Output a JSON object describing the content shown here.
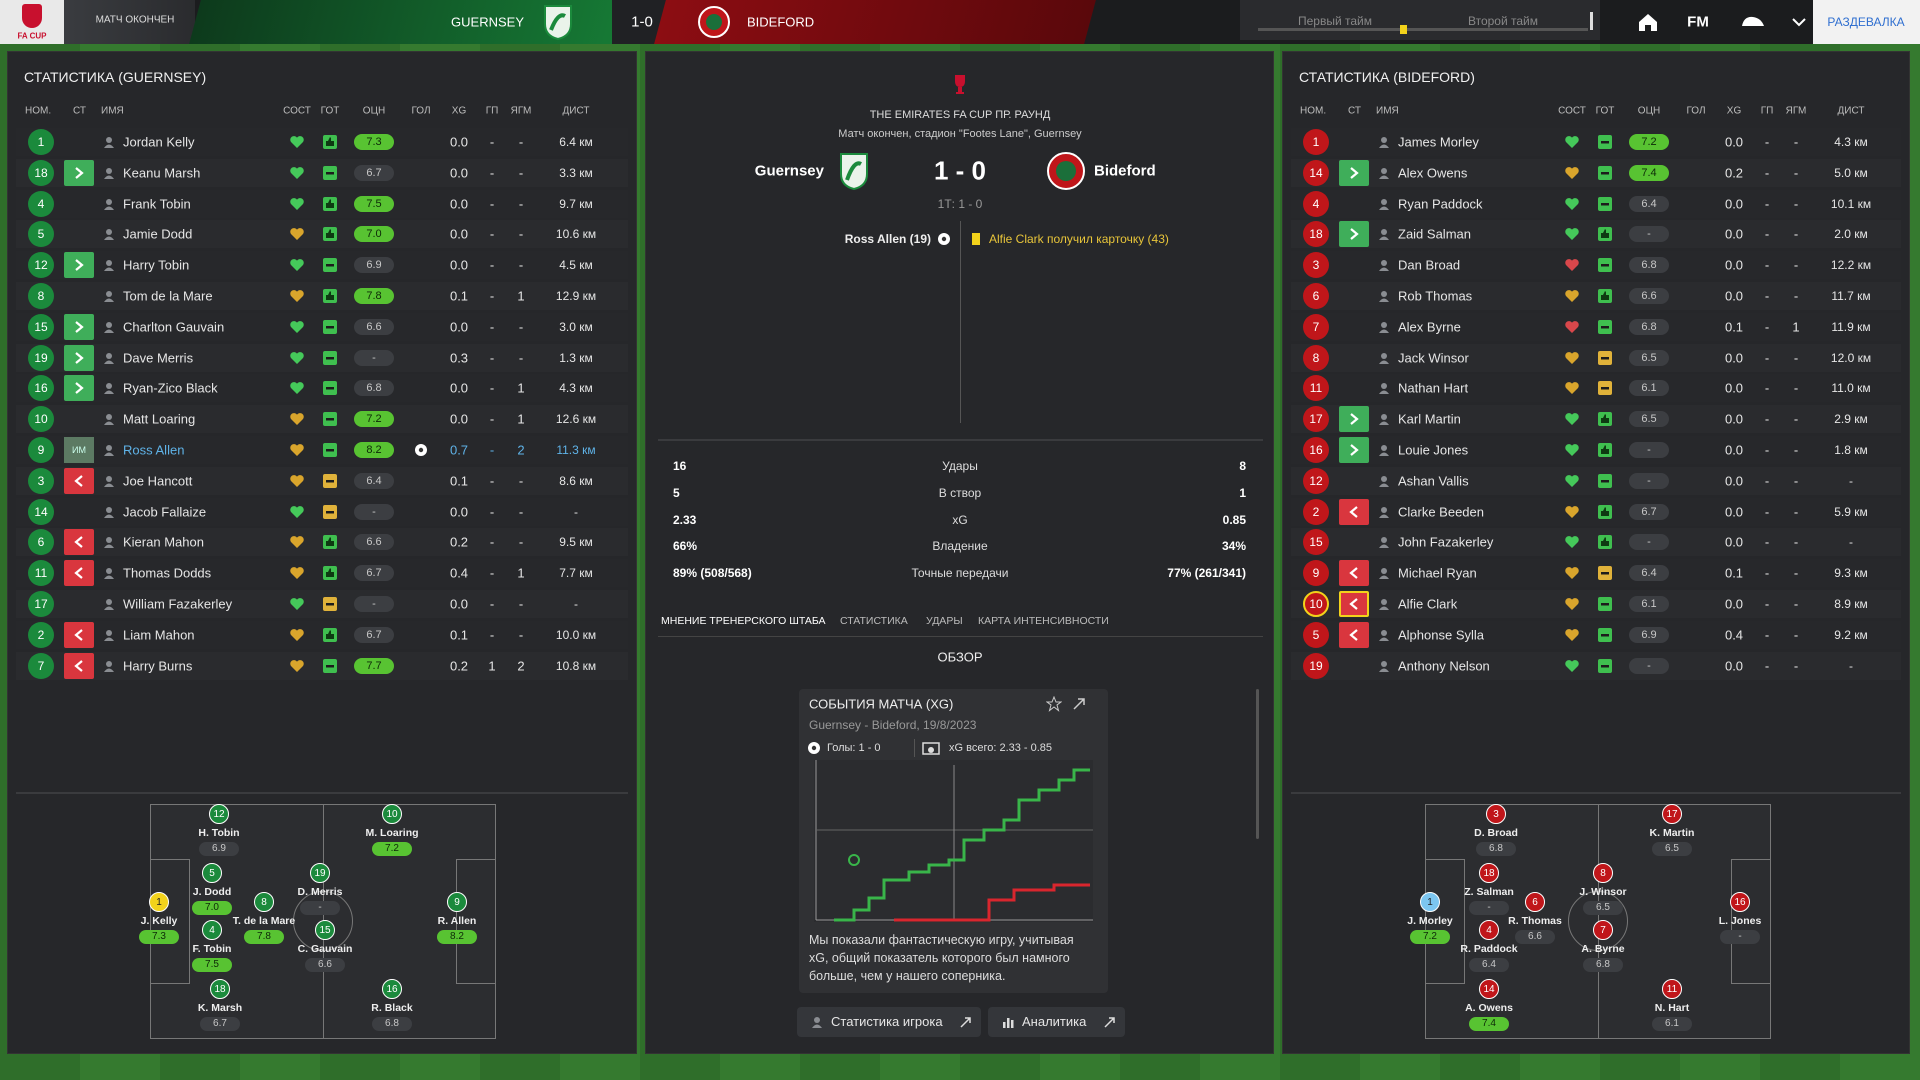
{
  "topbar": {
    "logo": "FA CUP",
    "status": "МАТЧ ОКОНЧЕН",
    "home": "GUERNSEY",
    "score": "1-0",
    "away": "BIDEFORD",
    "halves": [
      "Первый тайм",
      "Второй тайм"
    ],
    "nav_fm": "FM",
    "action": "РАЗДЕВАЛКА"
  },
  "columns": [
    "НОМ.",
    "СТ",
    "ИМЯ",
    "СОСТ",
    "ГОТ",
    "ОЦН",
    "ГОЛ",
    "XG",
    "ГП",
    "ЯГМ",
    "ДИСТ"
  ],
  "teams": [
    {
      "title": "СТАТИСТИКА (GUERNSEY)",
      "color": "#1b8a3c",
      "players": [
        {
          "num": "1",
          "name": "Jordan Kelly",
          "cond": "#45c95a",
          "ready": "up",
          "rating": "7.3",
          "xg": "0.0",
          "gp": "-",
          "yc": "-",
          "dist": "6.4 км"
        },
        {
          "num": "18",
          "sub": "in",
          "name": "Keanu Marsh",
          "cond": "#45c95a",
          "ready": "ok",
          "rating": "6.7",
          "xg": "0.0",
          "gp": "-",
          "yc": "-",
          "dist": "3.3 км"
        },
        {
          "num": "4",
          "name": "Frank Tobin",
          "cond": "#45c95a",
          "ready": "up",
          "rating": "7.5",
          "xg": "0.0",
          "gp": "-",
          "yc": "-",
          "dist": "9.7 км"
        },
        {
          "num": "5",
          "name": "Jamie Dodd",
          "cond": "#d9a52c",
          "ready": "up",
          "rating": "7.0",
          "xg": "0.0",
          "gp": "-",
          "yc": "-",
          "dist": "10.6 км"
        },
        {
          "num": "12",
          "sub": "in",
          "name": "Harry Tobin",
          "cond": "#45c95a",
          "ready": "ok",
          "rating": "6.9",
          "xg": "0.0",
          "gp": "-",
          "yc": "-",
          "dist": "4.5 км"
        },
        {
          "num": "8",
          "name": "Tom de la Mare",
          "cond": "#d9a52c",
          "ready": "up",
          "rating": "7.8",
          "xg": "0.1",
          "gp": "-",
          "yc": "1",
          "dist": "12.9 км"
        },
        {
          "num": "15",
          "sub": "in",
          "name": "Charlton Gauvain",
          "cond": "#45c95a",
          "ready": "ok",
          "rating": "6.6",
          "xg": "0.0",
          "gp": "-",
          "yc": "-",
          "dist": "3.0 км"
        },
        {
          "num": "19",
          "sub": "in",
          "name": "Dave Merris",
          "cond": "#45c95a",
          "ready": "ok",
          "rating": "-",
          "xg": "0.3",
          "gp": "-",
          "yc": "-",
          "dist": "1.3 км"
        },
        {
          "num": "16",
          "sub": "in",
          "name": "Ryan-Zico Black",
          "cond": "#45c95a",
          "ready": "ok",
          "rating": "6.8",
          "xg": "0.0",
          "gp": "-",
          "yc": "1",
          "dist": "4.3 км"
        },
        {
          "num": "10",
          "name": "Matt Loaring",
          "cond": "#d9a52c",
          "ready": "ok",
          "rating": "7.2",
          "xg": "0.0",
          "gp": "-",
          "yc": "1",
          "dist": "12.6 км"
        },
        {
          "num": "9",
          "role": "ИМ",
          "name": "Ross Allen",
          "cond": "#d9a52c",
          "ready": "ok",
          "rating": "8.2",
          "goal": true,
          "highlight": true,
          "xg": "0.7",
          "gp": "-",
          "yc": "2",
          "dist": "11.3 км"
        },
        {
          "num": "3",
          "sub": "out",
          "name": "Joe Hancott",
          "cond": "#d9a52c",
          "ready": "low",
          "rating": "6.4",
          "xg": "0.1",
          "gp": "-",
          "yc": "-",
          "dist": "8.6 км"
        },
        {
          "num": "14",
          "name": "Jacob Fallaize",
          "cond": "#45c95a",
          "ready": "low",
          "rating": "-",
          "xg": "0.0",
          "gp": "-",
          "yc": "-",
          "dist": "-"
        },
        {
          "num": "6",
          "sub": "out",
          "name": "Kieran Mahon",
          "cond": "#d9a52c",
          "ready": "up",
          "rating": "6.6",
          "xg": "0.2",
          "gp": "-",
          "yc": "-",
          "dist": "9.5 км"
        },
        {
          "num": "11",
          "sub": "out",
          "name": "Thomas Dodds",
          "cond": "#d9a52c",
          "ready": "up",
          "rating": "6.7",
          "xg": "0.4",
          "gp": "-",
          "yc": "1",
          "dist": "7.7 км"
        },
        {
          "num": "17",
          "name": "William Fazakerley",
          "cond": "#45c95a",
          "ready": "low",
          "rating": "-",
          "xg": "0.0",
          "gp": "-",
          "yc": "-",
          "dist": "-"
        },
        {
          "num": "2",
          "sub": "out",
          "name": "Liam Mahon",
          "cond": "#d9a52c",
          "ready": "up",
          "rating": "6.7",
          "xg": "0.1",
          "gp": "-",
          "yc": "-",
          "dist": "10.0 км"
        },
        {
          "num": "7",
          "sub": "out",
          "name": "Harry Burns",
          "cond": "#d9a52c",
          "ready": "ok",
          "rating": "7.7",
          "xg": "0.2",
          "gp": "1",
          "yc": "2",
          "dist": "10.8 км"
        }
      ],
      "pitch": [
        {
          "num": "1",
          "name": "J. Kelly",
          "rating": "7.3",
          "gk_color": "#f2d21b"
        },
        {
          "num": "12",
          "name": "H. Tobin",
          "rating": "6.9"
        },
        {
          "num": "5",
          "name": "J. Dodd",
          "rating": "7.0"
        },
        {
          "num": "4",
          "name": "F. Tobin",
          "rating": "7.5"
        },
        {
          "num": "18",
          "name": "K. Marsh",
          "rating": "6.7"
        },
        {
          "num": "8",
          "name": "T. de la Mare",
          "rating": "7.8"
        },
        {
          "num": "19",
          "name": "D. Merris",
          "rating": "-"
        },
        {
          "num": "15",
          "name": "C. Gauvain",
          "rating": "6.6"
        },
        {
          "num": "16",
          "name": "R. Black",
          "rating": "6.8"
        },
        {
          "num": "10",
          "name": "M. Loaring",
          "rating": "7.2"
        },
        {
          "num": "9",
          "name": "R. Allen",
          "rating": "8.2"
        }
      ]
    },
    {
      "title": "СТАТИСТИКА (BIDEFORD)",
      "color": "#c0161a",
      "players": [
        {
          "num": "1",
          "name": "James Morley",
          "cond": "#45c95a",
          "ready": "ok",
          "rating": "7.2",
          "xg": "0.0",
          "gp": "-",
          "yc": "-",
          "dist": "4.3 км"
        },
        {
          "num": "14",
          "sub": "in",
          "name": "Alex Owens",
          "cond": "#d9a52c",
          "ready": "ok",
          "rating": "7.4",
          "xg": "0.2",
          "gp": "-",
          "yc": "-",
          "dist": "5.0 км"
        },
        {
          "num": "4",
          "name": "Ryan Paddock",
          "cond": "#45c95a",
          "ready": "ok",
          "rating": "6.4",
          "xg": "0.0",
          "gp": "-",
          "yc": "-",
          "dist": "10.1 км"
        },
        {
          "num": "18",
          "sub": "in",
          "name": "Zaid Salman",
          "cond": "#45c95a",
          "ready": "up",
          "rating": "-",
          "xg": "0.0",
          "gp": "-",
          "yc": "-",
          "dist": "2.0 км"
        },
        {
          "num": "3",
          "name": "Dan Broad",
          "cond": "#d9474b",
          "ready": "ok",
          "rating": "6.8",
          "xg": "0.0",
          "gp": "-",
          "yc": "-",
          "dist": "12.2 км"
        },
        {
          "num": "6",
          "name": "Rob Thomas",
          "cond": "#d9a52c",
          "ready": "up",
          "rating": "6.6",
          "xg": "0.0",
          "gp": "-",
          "yc": "-",
          "dist": "11.7 км"
        },
        {
          "num": "7",
          "name": "Alex Byrne",
          "cond": "#d9474b",
          "ready": "ok",
          "rating": "6.8",
          "xg": "0.1",
          "gp": "-",
          "yc": "1",
          "dist": "11.9 км"
        },
        {
          "num": "8",
          "name": "Jack Winsor",
          "cond": "#d9a52c",
          "ready": "low",
          "rating": "6.5",
          "xg": "0.0",
          "gp": "-",
          "yc": "-",
          "dist": "12.0 км"
        },
        {
          "num": "11",
          "name": "Nathan Hart",
          "cond": "#d9a52c",
          "ready": "low",
          "rating": "6.1",
          "xg": "0.0",
          "gp": "-",
          "yc": "-",
          "dist": "11.0 км"
        },
        {
          "num": "17",
          "sub": "in",
          "name": "Karl Martin",
          "cond": "#45c95a",
          "ready": "up",
          "rating": "6.5",
          "xg": "0.0",
          "gp": "-",
          "yc": "-",
          "dist": "2.9 км"
        },
        {
          "num": "16",
          "sub": "in",
          "name": "Louie Jones",
          "cond": "#45c95a",
          "ready": "up",
          "rating": "-",
          "xg": "0.0",
          "gp": "-",
          "yc": "-",
          "dist": "1.8 км"
        },
        {
          "num": "12",
          "name": "Ashan Vallis",
          "cond": "#45c95a",
          "ready": "ok",
          "rating": "-",
          "xg": "0.0",
          "gp": "-",
          "yc": "-",
          "dist": "-"
        },
        {
          "num": "2",
          "sub": "out",
          "name": "Clarke Beeden",
          "cond": "#d9a52c",
          "ready": "up",
          "rating": "6.7",
          "xg": "0.0",
          "gp": "-",
          "yc": "-",
          "dist": "5.9 км"
        },
        {
          "num": "15",
          "name": "John Fazakerley",
          "cond": "#45c95a",
          "ready": "up",
          "rating": "-",
          "xg": "0.0",
          "gp": "-",
          "yc": "-",
          "dist": "-"
        },
        {
          "num": "9",
          "sub": "out",
          "name": "Michael Ryan",
          "cond": "#d9a52c",
          "ready": "low",
          "rating": "6.4",
          "xg": "0.1",
          "gp": "-",
          "yc": "-",
          "dist": "9.3 км"
        },
        {
          "num": "10",
          "sub": "out",
          "booked": true,
          "name": "Alfie Clark",
          "cond": "#d9a52c",
          "ready": "ok",
          "rating": "6.1",
          "xg": "0.0",
          "gp": "-",
          "yc": "-",
          "dist": "8.9 км"
        },
        {
          "num": "5",
          "sub": "out",
          "name": "Alphonse Sylla",
          "cond": "#d9a52c",
          "ready": "ok",
          "rating": "6.9",
          "xg": "0.4",
          "gp": "-",
          "yc": "-",
          "dist": "9.2 км"
        },
        {
          "num": "19",
          "name": "Anthony Nelson",
          "cond": "#45c95a",
          "ready": "ok",
          "rating": "-",
          "xg": "0.0",
          "gp": "-",
          "yc": "-",
          "dist": "-"
        }
      ],
      "pitch": [
        {
          "num": "1",
          "name": "J. Morley",
          "rating": "7.2",
          "gk_color": "#7cc6f0"
        },
        {
          "num": "3",
          "name": "D. Broad",
          "rating": "6.8"
        },
        {
          "num": "18",
          "name": "Z. Salman",
          "rating": "-"
        },
        {
          "num": "4",
          "name": "R. Paddock",
          "rating": "6.4"
        },
        {
          "num": "14",
          "name": "A. Owens",
          "rating": "7.4"
        },
        {
          "num": "6",
          "name": "R. Thomas",
          "rating": "6.6"
        },
        {
          "num": "8",
          "name": "J. Winsor",
          "rating": "6.5"
        },
        {
          "num": "7",
          "name": "A. Byrne",
          "rating": "6.8"
        },
        {
          "num": "17",
          "name": "K. Martin",
          "rating": "6.5"
        },
        {
          "num": "11",
          "name": "N. Hart",
          "rating": "6.1"
        },
        {
          "num": "16",
          "name": "L. Jones",
          "rating": "-"
        }
      ]
    }
  ],
  "match": {
    "competition": "THE EMIRATES FA CUP ПР. РАУНД",
    "subtitle": "Матч окончен, стадион \"Footes Lane\", Guernsey",
    "home": "Guernsey",
    "score": "1 - 0",
    "away": "Bideford",
    "halftime": "1Т: 1 - 0",
    "scorer": "Ross Allen (19)",
    "card": "Alfie Clark получил карточку (43)",
    "stats": [
      {
        "home": "16",
        "label": "Удары",
        "away": "8"
      },
      {
        "home": "5",
        "label": "В створ",
        "away": "1"
      },
      {
        "home": "2.33",
        "label": "xG",
        "away": "0.85"
      },
      {
        "home": "66%",
        "label": "Владение",
        "away": "34%"
      },
      {
        "home": "89% (508/568)",
        "label": "Точные передачи",
        "away": "77% (261/341)"
      }
    ],
    "tabs": [
      "МНЕНИЕ ТРЕНЕРСКОГО ШТАБА",
      "СТАТИСТИКА",
      "УДАРЫ",
      "КАРТА ИНТЕНСИВНОСТИ"
    ],
    "section": "ОБЗОР",
    "card_title": "СОБЫТИЯ МАТЧА (XG)",
    "card_subtitle": "Guernsey - Bideford, 19/8/2023",
    "goals": "Голы: 1 - 0",
    "xg_total": "xG всего: 2.33 - 0.85",
    "summary": "Мы показали фантастическую игру, учитывая xG, общий показатель которого был намного больше, чем у нашего соперника.",
    "buttons": [
      "Статистика игрока",
      "Аналитика"
    ]
  }
}
